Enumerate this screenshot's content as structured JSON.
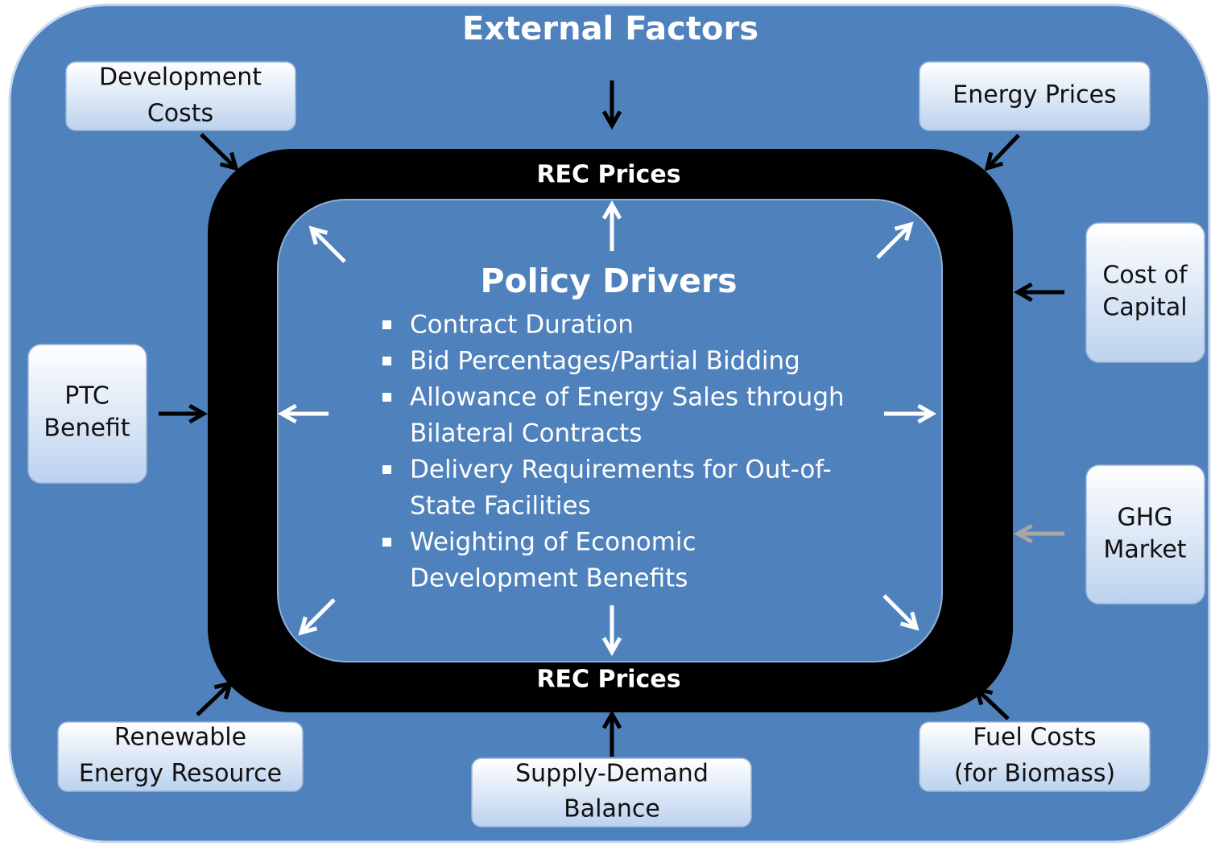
{
  "title": "External Factors",
  "ring": {
    "top_label": "REC Prices",
    "bottom_label": "REC Prices"
  },
  "center": {
    "title": "Policy Drivers",
    "bullets": [
      {
        "lines": [
          "Contract Duration"
        ]
      },
      {
        "lines": [
          "Bid Percentages/Partial Bidding"
        ]
      },
      {
        "lines": [
          "Allowance of Energy Sales through",
          "Bilateral Contracts"
        ]
      },
      {
        "lines": [
          "Delivery Requirements for Out-of-",
          "State Facilities"
        ]
      },
      {
        "lines": [
          "Weighting of Economic",
          "Development Benefits"
        ]
      }
    ]
  },
  "factors": [
    {
      "lines": [
        "Development",
        "Costs"
      ]
    },
    {
      "lines": [
        "Energy Prices"
      ]
    },
    {
      "lines": [
        "Cost of",
        "Capital"
      ]
    },
    {
      "lines": [
        "PTC",
        "Benefit"
      ]
    },
    {
      "lines": [
        "GHG",
        "Market"
      ]
    },
    {
      "lines": [
        "Renewable",
        "Energy Resource"
      ]
    },
    {
      "lines": [
        "Supply-Demand",
        "Balance"
      ]
    },
    {
      "lines": [
        "Fuel Costs",
        "(for Biomass)"
      ]
    }
  ]
}
